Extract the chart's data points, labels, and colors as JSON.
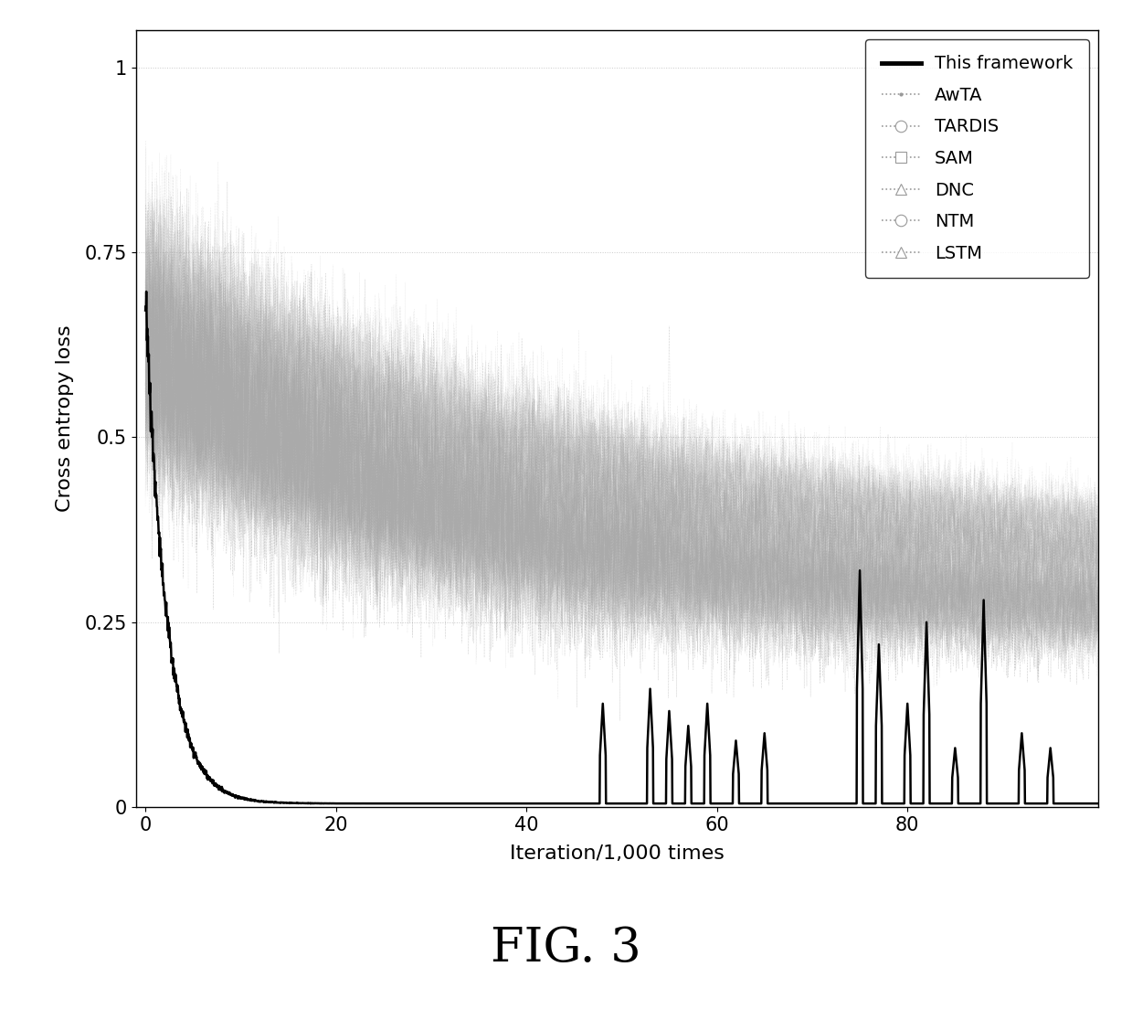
{
  "title": "FIG. 3",
  "xlabel": "Iteration/1,000 times",
  "ylabel": "Cross entropy loss",
  "xlim": [
    -1,
    100
  ],
  "ylim": [
    0,
    1.05
  ],
  "yticks": [
    0,
    0.25,
    0.5,
    0.75,
    1
  ],
  "ytick_labels": [
    "0",
    "0.25",
    "0.5",
    "0.75",
    "1"
  ],
  "xticks": [
    0,
    20,
    40,
    60,
    80
  ],
  "grid_color": "#bbbbbb",
  "background_color": "#ffffff",
  "legend_entries": [
    "This framework",
    "AwTA",
    "TARDIS",
    "SAM",
    "DNC",
    "NTM",
    "LSTM"
  ],
  "framework_color": "#000000",
  "gray_color": "#999999",
  "seed": 42
}
